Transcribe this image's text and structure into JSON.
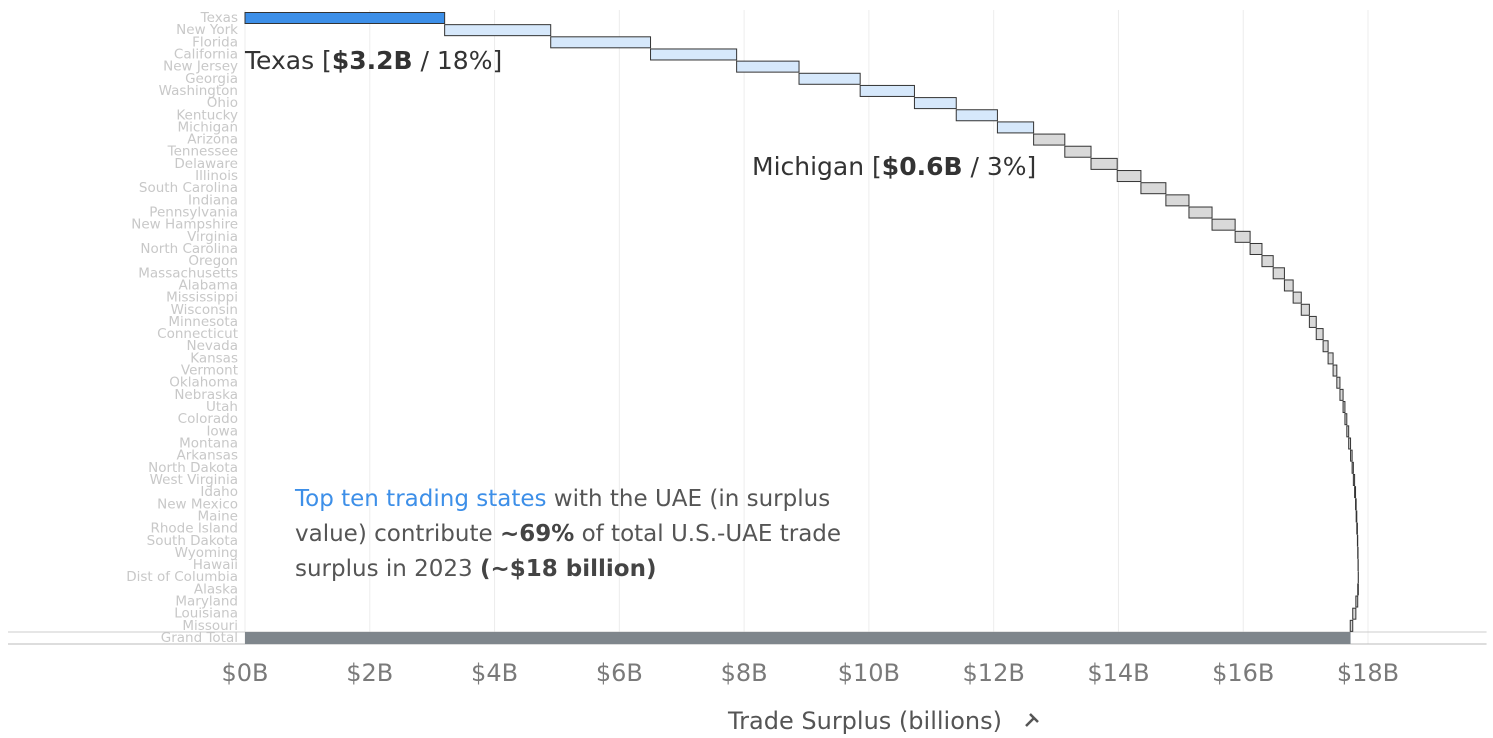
{
  "chart_data": {
    "type": "waterfall",
    "x_label": "Trade Surplus (billions)",
    "categories": [
      "Texas",
      "New York",
      "Florida",
      "California",
      "New Jersey",
      "Georgia",
      "Washington",
      "Ohio",
      "Kentucky",
      "Michigan",
      "Arizona",
      "Tennessee",
      "Delaware",
      "Illinois",
      "South Carolina",
      "Indiana",
      "Pennsylvania",
      "New Hampshire",
      "Virginia",
      "North Carolina",
      "Oregon",
      "Massachusetts",
      "Alabama",
      "Mississippi",
      "Wisconsin",
      "Minnesota",
      "Connecticut",
      "Nevada",
      "Kansas",
      "Vermont",
      "Oklahoma",
      "Nebraska",
      "Utah",
      "Colorado",
      "Iowa",
      "Montana",
      "Arkansas",
      "North Dakota",
      "West Virginia",
      "Idaho",
      "New Mexico",
      "Maine",
      "Rhode Island",
      "South Dakota",
      "Wyoming",
      "Hawaii",
      "Dist of Columbia",
      "Alaska",
      "Maryland",
      "Louisiana",
      "Missouri"
    ],
    "values": [
      3.2,
      1.7,
      1.6,
      1.38,
      1.0,
      0.98,
      0.87,
      0.67,
      0.66,
      0.58,
      0.5,
      0.42,
      0.42,
      0.38,
      0.4,
      0.37,
      0.37,
      0.37,
      0.24,
      0.19,
      0.18,
      0.18,
      0.14,
      0.13,
      0.13,
      0.11,
      0.11,
      0.08,
      0.08,
      0.06,
      0.05,
      0.05,
      0.03,
      0.03,
      0.03,
      0.03,
      0.025,
      0.02,
      0.02,
      0.015,
      0.01,
      0.01,
      0.01,
      0.005,
      0.005,
      0.003,
      0.002,
      -0.01,
      -0.03,
      -0.05,
      -0.04
    ],
    "colors": [
      "#3d8fe8",
      "#d6e8fb",
      "#d6e8fb",
      "#d6e8fb",
      "#d6e8fb",
      "#d6e8fb",
      "#d6e8fb",
      "#d6e8fb",
      "#d6e8fb",
      "#d6e8fb",
      "#d9d9d9",
      "#d9d9d9",
      "#d9d9d9",
      "#d9d9d9",
      "#d9d9d9",
      "#d9d9d9",
      "#d9d9d9",
      "#d9d9d9",
      "#d9d9d9",
      "#d9d9d9",
      "#d9d9d9",
      "#d9d9d9",
      "#d9d9d9",
      "#d9d9d9",
      "#d9d9d9",
      "#d9d9d9",
      "#d9d9d9",
      "#d9d9d9",
      "#d9d9d9",
      "#d9d9d9",
      "#d9d9d9",
      "#d9d9d9",
      "#d9d9d9",
      "#d9d9d9",
      "#d9d9d9",
      "#d9d9d9",
      "#d9d9d9",
      "#d9d9d9",
      "#d9d9d9",
      "#d9d9d9",
      "#d9d9d9",
      "#d9d9d9",
      "#d9d9d9",
      "#d9d9d9",
      "#d9d9d9",
      "#d9d9d9",
      "#d9d9d9",
      "#d9d9d9",
      "#d9d9d9",
      "#d9d9d9",
      "#d9d9d9"
    ],
    "total": {
      "label": "Grand Total",
      "value": 17.72,
      "color": "#7f868c"
    },
    "xlim": [
      0,
      19.9
    ],
    "xticks": [
      {
        "value": 0,
        "label": "$0B"
      },
      {
        "value": 2,
        "label": "$2B"
      },
      {
        "value": 4,
        "label": "$4B"
      },
      {
        "value": 6,
        "label": "$6B"
      },
      {
        "value": 8,
        "label": "$8B"
      },
      {
        "value": 10,
        "label": "$10B"
      },
      {
        "value": 12,
        "label": "$12B"
      },
      {
        "value": 14,
        "label": "$14B"
      },
      {
        "value": 16,
        "label": "$16B"
      },
      {
        "value": 18,
        "label": "$18B"
      }
    ],
    "grid": true,
    "annotations": [
      {
        "category": 0,
        "parts": [
          "Texas [",
          "$3.2B",
          " / ",
          "18%]"
        ],
        "bold": [
          false,
          true,
          false,
          false
        ]
      },
      {
        "category": 9,
        "parts": [
          "Michigan [",
          "$0.6B",
          " / ",
          "3%]"
        ],
        "bold": [
          false,
          true,
          false,
          false
        ]
      }
    ],
    "caption": [
      {
        "text": "Top ten trading states",
        "style": "highlight"
      },
      {
        "text": " with the UAE (in surplus value) contribute ",
        "style": "normal"
      },
      {
        "text": "~69%",
        "style": "bold"
      },
      {
        "text": " of total U.S.-UAE trade surplus in 2023 ",
        "style": "normal"
      },
      {
        "text": "(~$18 billion)",
        "style": "bold"
      }
    ]
  }
}
